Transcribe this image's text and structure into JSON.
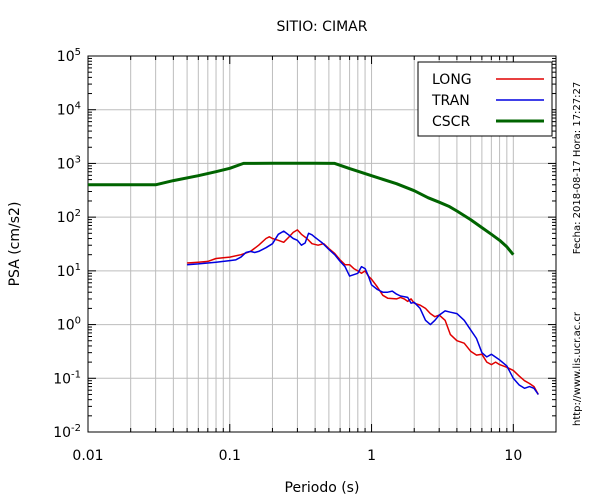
{
  "chart_data": {
    "type": "line",
    "title": "SITIO: CIMAR",
    "xlabel": "Periodo (s)",
    "ylabel": "PSA (cm/s2)",
    "x_scale": "log",
    "y_scale": "log",
    "xlim": [
      0.01,
      20
    ],
    "ylim": [
      0.01,
      100000
    ],
    "x_ticks": [
      {
        "value": 0.01,
        "label": "0.01"
      },
      {
        "value": 0.1,
        "label": "0.1"
      },
      {
        "value": 1,
        "label": "1"
      },
      {
        "value": 10,
        "label": "10"
      }
    ],
    "y_ticks": [
      {
        "value": 0.01,
        "base": "10",
        "exp": "-2"
      },
      {
        "value": 0.1,
        "base": "10",
        "exp": "-1"
      },
      {
        "value": 1,
        "base": "10",
        "exp": "0"
      },
      {
        "value": 10,
        "base": "10",
        "exp": "1"
      },
      {
        "value": 100,
        "base": "10",
        "exp": "2"
      },
      {
        "value": 1000,
        "base": "10",
        "exp": "3"
      },
      {
        "value": 10000,
        "base": "10",
        "exp": "4"
      },
      {
        "value": 100000,
        "base": "10",
        "exp": "5"
      }
    ],
    "grid": true,
    "legend_position": "top-right",
    "date_text": "Fecha: 2018-08-17 Hora: 17:27:27",
    "url_text": "http://www.lis.ucr.ac.cr",
    "series": [
      {
        "name": "LONG",
        "color": "#e00000",
        "width": 1.5,
        "points": [
          [
            0.05,
            14
          ],
          [
            0.06,
            14.5
          ],
          [
            0.07,
            15
          ],
          [
            0.08,
            17
          ],
          [
            0.09,
            17.5
          ],
          [
            0.1,
            18
          ],
          [
            0.12,
            20
          ],
          [
            0.14,
            23
          ],
          [
            0.16,
            30
          ],
          [
            0.18,
            40
          ],
          [
            0.19,
            43
          ],
          [
            0.2,
            40
          ],
          [
            0.22,
            37
          ],
          [
            0.24,
            34
          ],
          [
            0.26,
            42
          ],
          [
            0.28,
            52
          ],
          [
            0.3,
            58
          ],
          [
            0.32,
            48
          ],
          [
            0.35,
            40
          ],
          [
            0.38,
            32
          ],
          [
            0.42,
            30
          ],
          [
            0.46,
            32
          ],
          [
            0.5,
            26
          ],
          [
            0.55,
            21
          ],
          [
            0.6,
            16
          ],
          [
            0.65,
            13
          ],
          [
            0.7,
            13
          ],
          [
            0.75,
            11
          ],
          [
            0.8,
            10
          ],
          [
            0.85,
            9
          ],
          [
            0.9,
            10
          ],
          [
            0.95,
            8
          ],
          [
            1.0,
            7
          ],
          [
            1.1,
            5
          ],
          [
            1.2,
            3.5
          ],
          [
            1.3,
            3.1
          ],
          [
            1.5,
            3.0
          ],
          [
            1.6,
            3.2
          ],
          [
            1.7,
            3.0
          ],
          [
            1.8,
            2.7
          ],
          [
            1.9,
            3.0
          ],
          [
            2.0,
            2.5
          ],
          [
            2.2,
            2.3
          ],
          [
            2.4,
            2.0
          ],
          [
            2.6,
            1.6
          ],
          [
            2.8,
            1.4
          ],
          [
            3.0,
            1.5
          ],
          [
            3.3,
            1.2
          ],
          [
            3.6,
            0.65
          ],
          [
            4.0,
            0.5
          ],
          [
            4.5,
            0.45
          ],
          [
            5.0,
            0.32
          ],
          [
            5.5,
            0.27
          ],
          [
            6.0,
            0.28
          ],
          [
            6.5,
            0.2
          ],
          [
            7.0,
            0.18
          ],
          [
            7.5,
            0.2
          ],
          [
            8.0,
            0.18
          ],
          [
            9.0,
            0.16
          ],
          [
            10.0,
            0.14
          ],
          [
            11.0,
            0.11
          ],
          [
            12.0,
            0.09
          ],
          [
            13.0,
            0.08
          ],
          [
            14.0,
            0.07
          ],
          [
            15.0,
            0.05
          ]
        ]
      },
      {
        "name": "TRAN",
        "color": "#0000e0",
        "width": 1.5,
        "points": [
          [
            0.05,
            13
          ],
          [
            0.06,
            13.5
          ],
          [
            0.07,
            14
          ],
          [
            0.08,
            14.5
          ],
          [
            0.09,
            15
          ],
          [
            0.1,
            15.5
          ],
          [
            0.11,
            16
          ],
          [
            0.12,
            18
          ],
          [
            0.13,
            22
          ],
          [
            0.14,
            23
          ],
          [
            0.15,
            22
          ],
          [
            0.16,
            23
          ],
          [
            0.18,
            27
          ],
          [
            0.2,
            32
          ],
          [
            0.22,
            48
          ],
          [
            0.24,
            55
          ],
          [
            0.26,
            47
          ],
          [
            0.28,
            40
          ],
          [
            0.3,
            37
          ],
          [
            0.32,
            30
          ],
          [
            0.34,
            33
          ],
          [
            0.36,
            50
          ],
          [
            0.38,
            47
          ],
          [
            0.4,
            42
          ],
          [
            0.42,
            38
          ],
          [
            0.45,
            33
          ],
          [
            0.5,
            25
          ],
          [
            0.55,
            20
          ],
          [
            0.6,
            15
          ],
          [
            0.65,
            12
          ],
          [
            0.7,
            8
          ],
          [
            0.8,
            9
          ],
          [
            0.85,
            12
          ],
          [
            0.9,
            11
          ],
          [
            0.95,
            8
          ],
          [
            1.0,
            5.5
          ],
          [
            1.1,
            4.5
          ],
          [
            1.2,
            4.0
          ],
          [
            1.3,
            4.0
          ],
          [
            1.4,
            4.2
          ],
          [
            1.5,
            3.7
          ],
          [
            1.6,
            3.4
          ],
          [
            1.8,
            3.2
          ],
          [
            1.9,
            2.5
          ],
          [
            2.0,
            2.6
          ],
          [
            2.2,
            2.0
          ],
          [
            2.4,
            1.2
          ],
          [
            2.6,
            1.0
          ],
          [
            2.8,
            1.2
          ],
          [
            3.0,
            1.5
          ],
          [
            3.3,
            1.8
          ],
          [
            3.6,
            1.7
          ],
          [
            4.0,
            1.6
          ],
          [
            4.5,
            1.2
          ],
          [
            5.0,
            0.8
          ],
          [
            5.5,
            0.55
          ],
          [
            6.0,
            0.3
          ],
          [
            6.5,
            0.25
          ],
          [
            7.0,
            0.28
          ],
          [
            8.0,
            0.22
          ],
          [
            9.0,
            0.17
          ],
          [
            10.0,
            0.1
          ],
          [
            11.0,
            0.075
          ],
          [
            12.0,
            0.065
          ],
          [
            13.0,
            0.07
          ],
          [
            14.0,
            0.065
          ],
          [
            15.0,
            0.05
          ]
        ]
      },
      {
        "name": "CSCR",
        "color": "#006400",
        "width": 3,
        "points": [
          [
            0.01,
            400
          ],
          [
            0.03,
            400
          ],
          [
            0.04,
            480
          ],
          [
            0.06,
            590
          ],
          [
            0.08,
            700
          ],
          [
            0.1,
            810
          ],
          [
            0.125,
            1000
          ],
          [
            0.2,
            1010
          ],
          [
            0.3,
            1010
          ],
          [
            0.4,
            1005
          ],
          [
            0.55,
            1000
          ],
          [
            0.7,
            800
          ],
          [
            1.0,
            590
          ],
          [
            1.5,
            420
          ],
          [
            2.0,
            310
          ],
          [
            2.5,
            230
          ],
          [
            3.0,
            190
          ],
          [
            3.5,
            160
          ],
          [
            4.0,
            130
          ],
          [
            5.0,
            90
          ],
          [
            6.0,
            64
          ],
          [
            7.0,
            48
          ],
          [
            8.0,
            37
          ],
          [
            9.0,
            28
          ],
          [
            10.0,
            20
          ]
        ]
      }
    ]
  }
}
